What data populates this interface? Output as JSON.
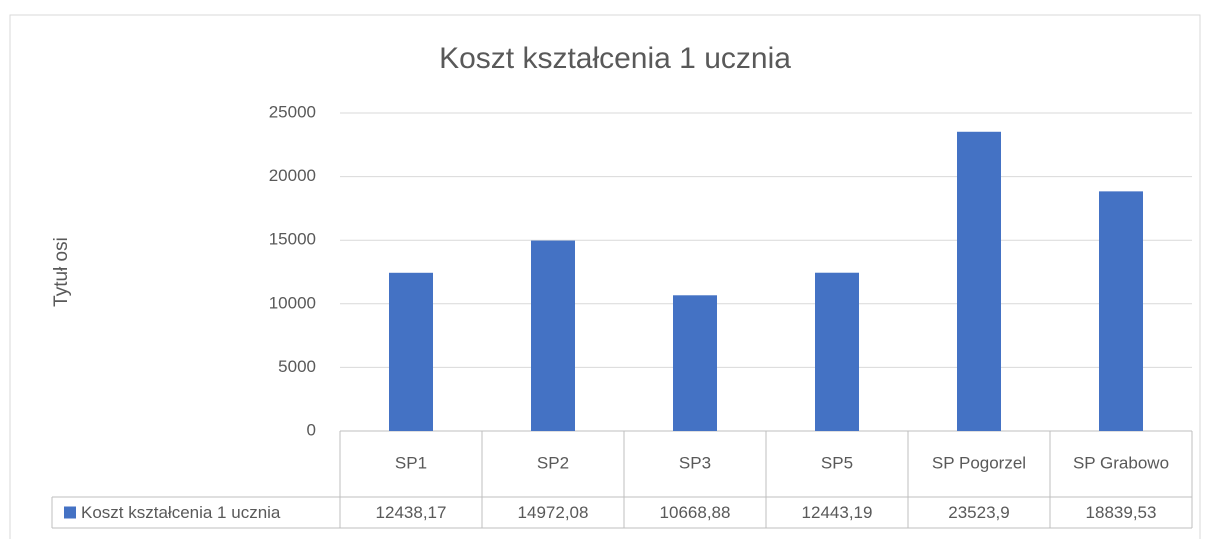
{
  "chart_data": {
    "type": "bar",
    "title": "Koszt kształcenia 1 ucznia",
    "y_label": "Tytuł osi",
    "categories": [
      "SP1",
      "SP2",
      "SP3",
      "SP5",
      "SP Pogorzel",
      "SP Grabowo"
    ],
    "series": [
      {
        "name": "Koszt kształcenia 1 ucznia",
        "color": "#4472c4",
        "values": [
          12438.17,
          14972.08,
          10668.88,
          12443.19,
          23523.9,
          18839.53
        ],
        "value_labels": [
          "12438,17",
          "14972,08",
          "10668,88",
          "12443,19",
          "23523,9",
          "18839,53"
        ]
      }
    ],
    "ylim": [
      0,
      25000
    ],
    "yticks": [
      0,
      5000,
      10000,
      15000,
      20000,
      25000
    ],
    "grid": true,
    "data_table": true
  }
}
